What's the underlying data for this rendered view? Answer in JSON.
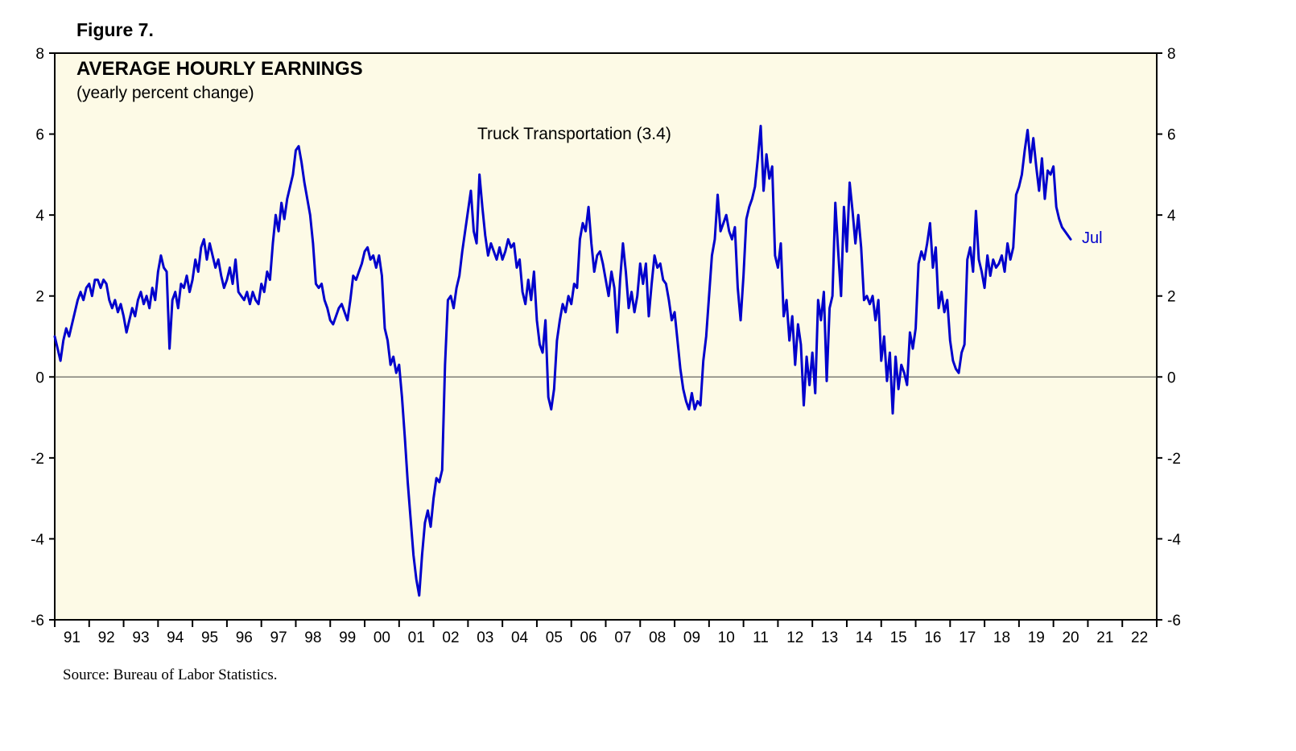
{
  "figure_label": "Figure 7.",
  "title": "AVERAGE HOURLY EARNINGS",
  "subtitle": "(yearly percent change)",
  "series_label": "Truck Transportation (3.4)",
  "last_point_label": "Jul",
  "last_point_value": 3.4,
  "source": "Source: Bureau of Labor Statistics.",
  "colors": {
    "line": "#0000cc",
    "plot_bg": "#fdfae6",
    "axis": "#000000",
    "zero_line": "#404040",
    "annotation_blue": "#0000cc"
  },
  "chart_data": {
    "type": "line",
    "title": "AVERAGE HOURLY EARNINGS",
    "subtitle": "(yearly percent change)",
    "xlabel": "",
    "ylabel": "",
    "ylim": [
      -6,
      8
    ],
    "y_ticks": [
      8,
      6,
      4,
      2,
      0,
      -2,
      -4,
      -6
    ],
    "x_range_years": [
      1991,
      2023
    ],
    "x_tick_labels": [
      "91",
      "92",
      "93",
      "94",
      "95",
      "96",
      "97",
      "98",
      "99",
      "00",
      "01",
      "02",
      "03",
      "04",
      "05",
      "06",
      "07",
      "08",
      "09",
      "10",
      "11",
      "12",
      "13",
      "14",
      "15",
      "16",
      "17",
      "18",
      "19",
      "20",
      "21",
      "22"
    ],
    "grid": false,
    "legend_position": "none",
    "annotations": [
      {
        "text": "Truck Transportation (3.4)",
        "color": "#000000"
      },
      {
        "text": "Jul",
        "color": "#0000cc",
        "attached_to": "last_point"
      }
    ],
    "series": [
      {
        "name": "Truck Transportation",
        "frequency": "monthly",
        "start_year": 1991,
        "start_month": 1,
        "end_label": "Jul 2020",
        "values": [
          1.0,
          0.7,
          0.4,
          0.9,
          1.2,
          1.0,
          1.3,
          1.6,
          1.9,
          2.1,
          1.9,
          2.2,
          2.3,
          2.0,
          2.4,
          2.4,
          2.2,
          2.4,
          2.3,
          1.9,
          1.7,
          1.9,
          1.6,
          1.8,
          1.5,
          1.1,
          1.4,
          1.7,
          1.5,
          1.9,
          2.1,
          1.8,
          2.0,
          1.7,
          2.2,
          1.9,
          2.6,
          3.0,
          2.7,
          2.6,
          0.7,
          1.9,
          2.1,
          1.7,
          2.3,
          2.2,
          2.5,
          2.1,
          2.4,
          2.9,
          2.6,
          3.2,
          3.4,
          2.9,
          3.3,
          3.0,
          2.7,
          2.9,
          2.5,
          2.2,
          2.4,
          2.7,
          2.3,
          2.9,
          2.1,
          2.0,
          1.9,
          2.1,
          1.8,
          2.1,
          1.9,
          1.8,
          2.3,
          2.1,
          2.6,
          2.4,
          3.3,
          4.0,
          3.6,
          4.3,
          3.9,
          4.4,
          4.7,
          5.0,
          5.6,
          5.7,
          5.3,
          4.8,
          4.4,
          4.0,
          3.3,
          2.3,
          2.2,
          2.3,
          1.9,
          1.7,
          1.4,
          1.3,
          1.5,
          1.7,
          1.8,
          1.6,
          1.4,
          1.9,
          2.5,
          2.4,
          2.6,
          2.8,
          3.1,
          3.2,
          2.9,
          3.0,
          2.7,
          3.0,
          2.5,
          1.2,
          0.9,
          0.3,
          0.5,
          0.1,
          0.3,
          -0.5,
          -1.5,
          -2.6,
          -3.5,
          -4.4,
          -5.0,
          -5.4,
          -4.4,
          -3.6,
          -3.3,
          -3.7,
          -3.0,
          -2.5,
          -2.6,
          -2.3,
          0.3,
          1.9,
          2.0,
          1.7,
          2.2,
          2.5,
          3.1,
          3.6,
          4.1,
          4.6,
          3.6,
          3.3,
          5.0,
          4.2,
          3.5,
          3.0,
          3.3,
          3.1,
          2.9,
          3.2,
          2.9,
          3.1,
          3.4,
          3.2,
          3.3,
          2.7,
          2.9,
          2.1,
          1.8,
          2.4,
          1.9,
          2.6,
          1.4,
          0.8,
          0.6,
          1.4,
          -0.5,
          -0.8,
          -0.3,
          0.9,
          1.4,
          1.8,
          1.6,
          2.0,
          1.8,
          2.3,
          2.2,
          3.4,
          3.8,
          3.6,
          4.2,
          3.3,
          2.6,
          3.0,
          3.1,
          2.8,
          2.4,
          2.0,
          2.6,
          2.2,
          1.1,
          2.4,
          3.3,
          2.6,
          1.7,
          2.1,
          1.6,
          2.0,
          2.8,
          2.3,
          2.8,
          1.5,
          2.3,
          3.0,
          2.7,
          2.8,
          2.4,
          2.3,
          1.9,
          1.4,
          1.6,
          0.9,
          0.2,
          -0.3,
          -0.6,
          -0.8,
          -0.4,
          -0.8,
          -0.6,
          -0.7,
          0.4,
          1.0,
          2.0,
          3.0,
          3.4,
          4.5,
          3.6,
          3.8,
          4.0,
          3.6,
          3.4,
          3.7,
          2.2,
          1.4,
          2.5,
          3.9,
          4.2,
          4.4,
          4.7,
          5.4,
          6.2,
          4.6,
          5.5,
          4.9,
          5.2,
          3.0,
          2.7,
          3.3,
          1.5,
          1.9,
          0.9,
          1.5,
          0.3,
          1.3,
          0.8,
          -0.7,
          0.5,
          -0.2,
          0.6,
          -0.4,
          1.9,
          1.4,
          2.1,
          -0.1,
          1.7,
          2.0,
          4.3,
          3.1,
          2.0,
          4.2,
          3.1,
          4.8,
          4.1,
          3.3,
          4.0,
          3.2,
          1.9,
          2.0,
          1.8,
          2.0,
          1.4,
          1.9,
          0.4,
          1.0,
          -0.1,
          0.6,
          -0.9,
          0.5,
          -0.3,
          0.3,
          0.1,
          -0.2,
          1.1,
          0.7,
          1.2,
          2.8,
          3.1,
          2.9,
          3.3,
          3.8,
          2.7,
          3.2,
          1.7,
          2.1,
          1.6,
          1.9,
          0.9,
          0.4,
          0.2,
          0.1,
          0.6,
          0.8,
          2.9,
          3.2,
          2.6,
          4.1,
          2.9,
          2.6,
          2.2,
          3.0,
          2.5,
          2.9,
          2.7,
          2.8,
          3.0,
          2.6,
          3.3,
          2.9,
          3.2,
          4.5,
          4.7,
          5.0,
          5.6,
          6.1,
          5.3,
          5.9,
          5.2,
          4.6,
          5.4,
          4.4,
          5.1,
          5.0,
          5.2,
          4.2,
          3.9,
          3.7,
          3.6,
          3.5,
          3.4
        ]
      }
    ]
  }
}
